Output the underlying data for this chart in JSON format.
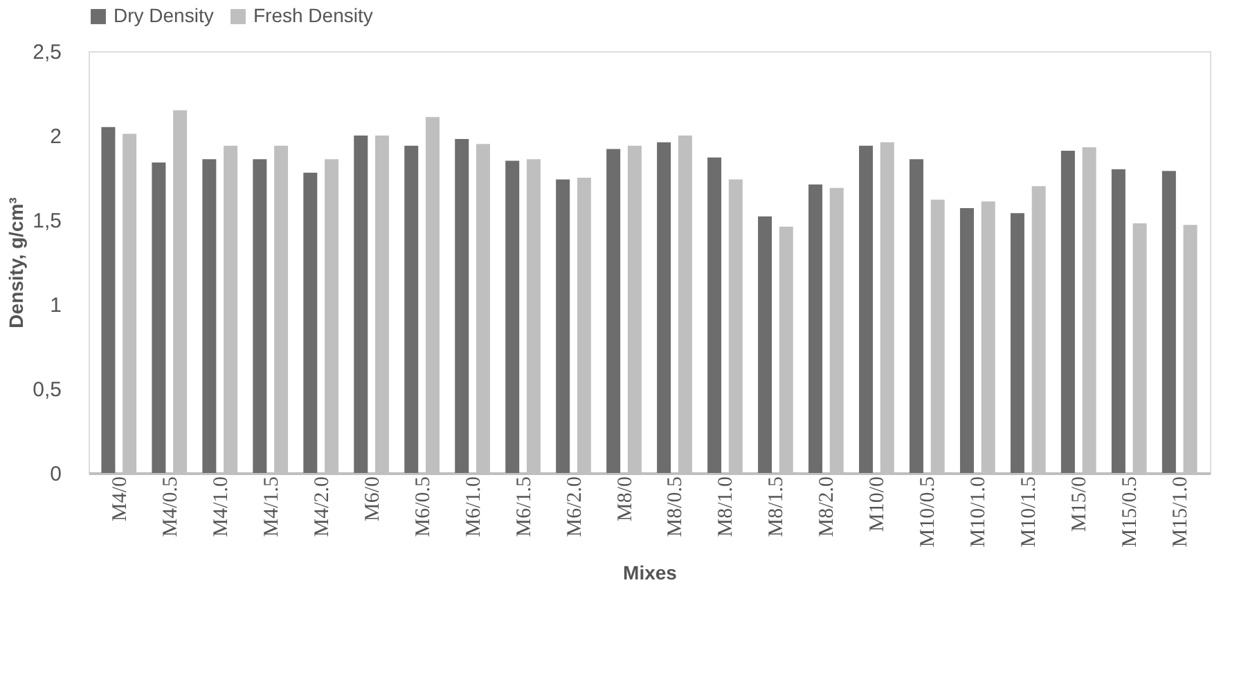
{
  "chart_data": {
    "type": "bar",
    "xlabel": "Mixes",
    "ylabel": "Density, g/cm³",
    "categories": [
      "M4/0",
      "M4/0.5",
      "M4/1.0",
      "M4/1.5",
      "M4/2.0",
      "M6/0",
      "M6/0.5",
      "M6/1.0",
      "M6/1.5",
      "M6/2.0",
      "M8/0",
      "M8/0.5",
      "M8/1.0",
      "M8/1.5",
      "M8/2.0",
      "M10/0",
      "M10/0.5",
      "M10/1.0",
      "M10/1.5",
      "M15/0",
      "M15/0.5",
      "M15/1.0"
    ],
    "series": [
      {
        "name": "Dry Density",
        "color": "#6d6d6d",
        "values": [
          2.05,
          1.84,
          1.86,
          1.86,
          1.78,
          2.0,
          1.94,
          1.98,
          1.85,
          1.74,
          1.92,
          1.96,
          1.87,
          1.52,
          1.71,
          1.94,
          1.86,
          1.57,
          1.54,
          1.91,
          1.8,
          1.79
        ]
      },
      {
        "name": "Fresh Density",
        "color": "#bfbfbf",
        "values": [
          2.01,
          2.15,
          1.94,
          1.94,
          1.86,
          2.0,
          2.11,
          1.95,
          1.86,
          1.75,
          1.94,
          2.0,
          1.74,
          1.46,
          1.69,
          1.96,
          1.62,
          1.61,
          1.7,
          1.93,
          1.48,
          1.47
        ]
      }
    ],
    "ylim": [
      0,
      2.5
    ],
    "yticks": [
      0,
      {
        "value": 0.5,
        "label": "0,5"
      },
      1,
      {
        "value": 1.5,
        "label": "1,5"
      },
      2,
      {
        "value": 2.5,
        "label": "2,5"
      }
    ],
    "grid": false,
    "legend": "top"
  }
}
